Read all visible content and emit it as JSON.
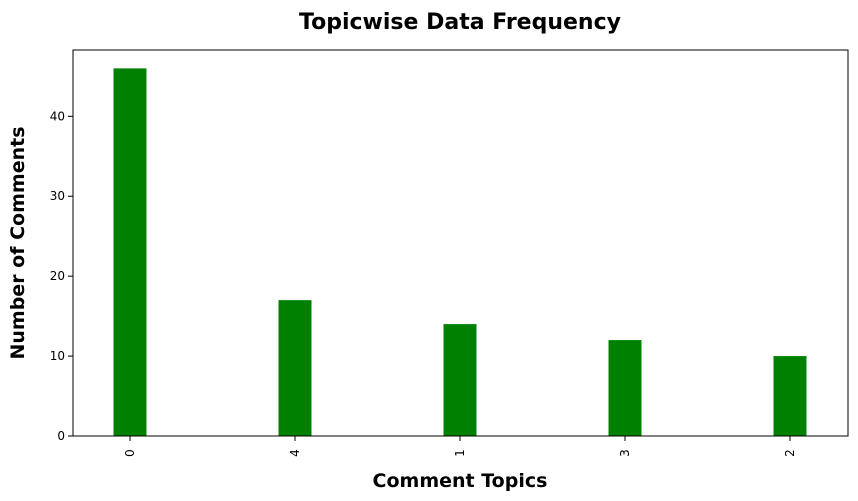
{
  "chart_data": {
    "type": "bar",
    "title": "Topicwise Data Frequency",
    "xlabel": "Comment Topics",
    "ylabel": "Number of Comments",
    "categories": [
      "0",
      "4",
      "1",
      "3",
      "2"
    ],
    "values": [
      46,
      17,
      14,
      12,
      10
    ],
    "ylim": [
      0,
      48.3
    ],
    "yticks": [
      0,
      10,
      20,
      30,
      40
    ],
    "grid": false,
    "legend": "none",
    "bar_color": "#008000"
  }
}
